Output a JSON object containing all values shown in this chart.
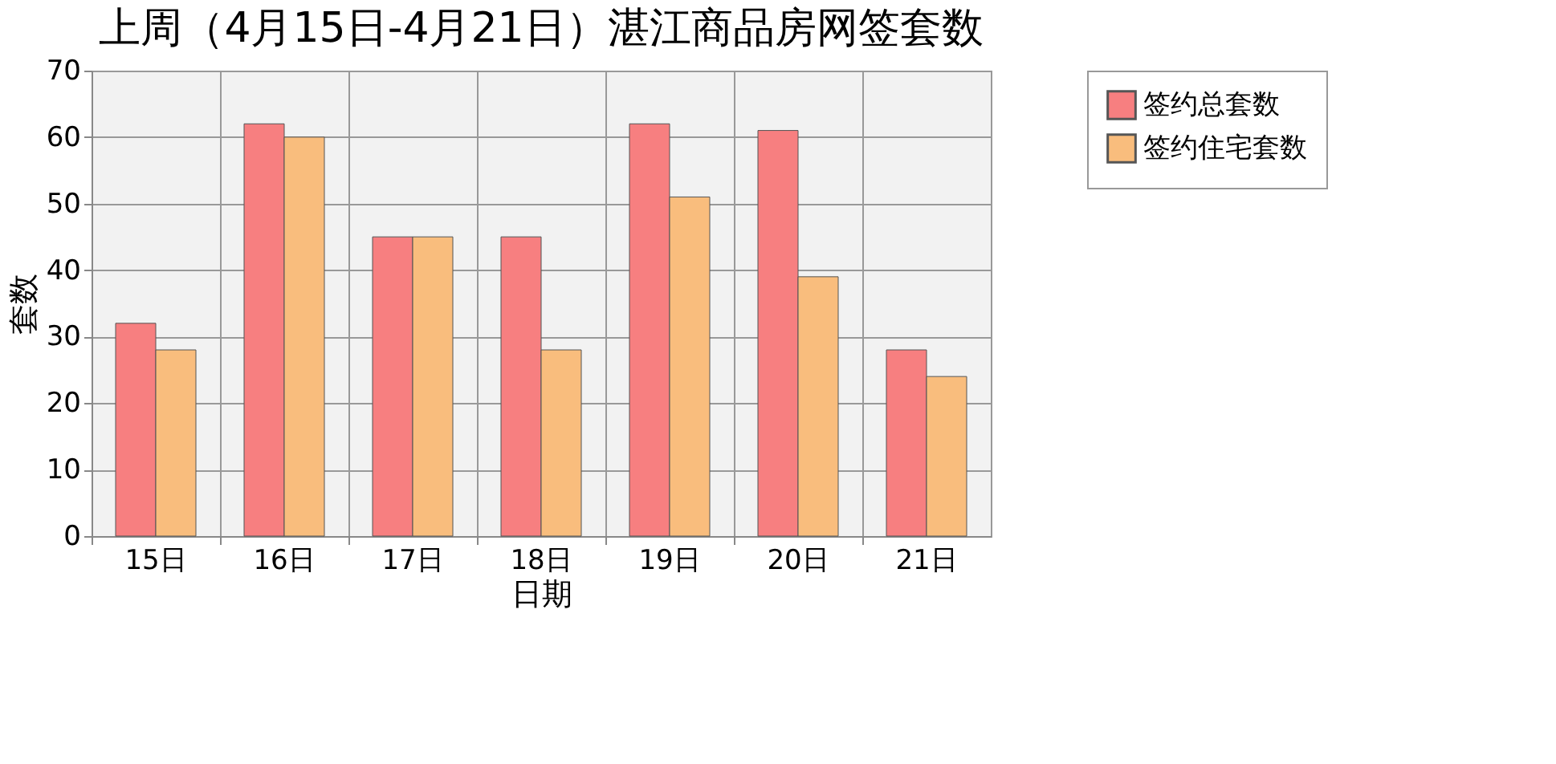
{
  "chart_data": {
    "type": "bar",
    "title": "上周（4月15日-4月21日）湛江商品房网签套数",
    "xlabel": "日期",
    "ylabel": "套数",
    "categories": [
      "15日",
      "16日",
      "17日",
      "18日",
      "19日",
      "20日",
      "21日"
    ],
    "series": [
      {
        "name": "签约总套数",
        "color": "#f77f80",
        "values": [
          32,
          62,
          45,
          45,
          62,
          61,
          28
        ]
      },
      {
        "name": "签约住宅套数",
        "color": "#f9bd7d",
        "values": [
          28,
          60,
          45,
          28,
          51,
          39,
          24
        ]
      }
    ],
    "ylim": [
      0,
      70
    ],
    "yticks": [
      0,
      10,
      20,
      30,
      40,
      50,
      60,
      70
    ],
    "grid": true,
    "legend": "right"
  }
}
